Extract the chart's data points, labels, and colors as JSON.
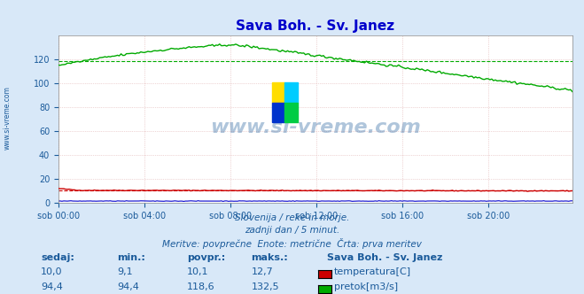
{
  "title": "Sava Boh. - Sv. Janez",
  "title_color": "#0000cc",
  "bg_color": "#d8e8f8",
  "plot_bg_color": "#ffffff",
  "x_tick_labels": [
    "sob 00:00",
    "sob 04:00",
    "sob 08:00",
    "sob 12:00",
    "sob 16:00",
    "sob 20:00"
  ],
  "x_tick_positions": [
    0,
    48,
    96,
    144,
    192,
    240
  ],
  "ylim": [
    0,
    140
  ],
  "yticks": [
    0,
    20,
    40,
    60,
    80,
    100,
    120
  ],
  "n_points": 288,
  "temp_avg": 10.1,
  "flow_avg": 118.6,
  "temp_color": "#cc0000",
  "flow_color": "#00aa00",
  "blue_line_color": "#0000cc",
  "watermark_color": "#1a5a9a",
  "text_color": "#1a5a9a",
  "footer_lines": [
    "Slovenija / reke in morje.",
    "zadnji dan / 5 minut.",
    "Meritve: povprečne  Enote: metrične  Črta: prva meritev"
  ],
  "legend_title": "Sava Boh. - Sv. Janez",
  "legend_rows": [
    {
      "value": "10,0",
      "min": "9,1",
      "avg": "10,1",
      "max": "12,7",
      "label": "temperatura[C]",
      "color": "#cc0000"
    },
    {
      "value": "94,4",
      "min": "94,4",
      "avg": "118,6",
      "max": "132,5",
      "label": "pretok[m3/s]",
      "color": "#00aa00"
    }
  ],
  "col_headers": [
    "sedaj:",
    "min.:",
    "povpr.:",
    "maks.:"
  ]
}
